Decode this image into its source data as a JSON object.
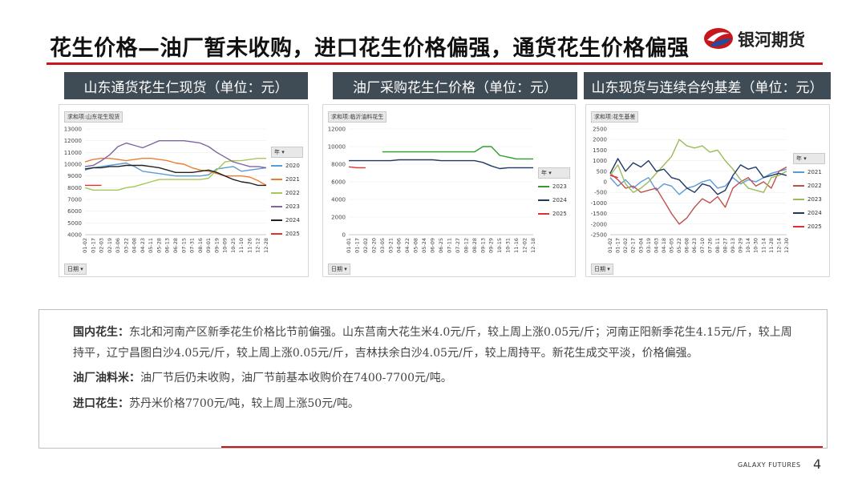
{
  "title": "花生价格—油厂暂未收购，进口花生价格偏强，通货花生价格偏强",
  "logo_text": "银河期货",
  "footer": "GALAXY FUTURES",
  "page_number": "4",
  "colors": {
    "accent": "#c8161d",
    "panel_header": "#3f4b55"
  },
  "panels": [
    {
      "header": "山东通货花生仁现货（单位：元）",
      "field": "求和项:山东花生现货",
      "legend_title": "年",
      "axis_button": "日期"
    },
    {
      "header": "油厂采购花生仁价格（单位：元）",
      "field": "求和项:临沂油料花生",
      "legend_title": "年",
      "axis_button": "日期"
    },
    {
      "header": "山东现货与连续合约基差（单位：元）",
      "field": "求和项:花生基差",
      "legend_title": "年",
      "axis_button": "日期"
    }
  ],
  "chart_data": [
    {
      "type": "line",
      "x": [
        "01-02",
        "01-17",
        "02-03",
        "02-19",
        "03-06",
        "03-22",
        "04-08",
        "04-23",
        "05-11",
        "05-28",
        "06-13",
        "06-28",
        "07-15",
        "07-31",
        "08-16",
        "09-01",
        "09-19",
        "10-09",
        "10-25",
        "11-10",
        "11-26",
        "12-12",
        "12-28"
      ],
      "ylim": [
        4000,
        13000
      ],
      "yticks": [
        4000,
        5000,
        6000,
        7000,
        8000,
        9000,
        10000,
        11000,
        12000,
        13000
      ],
      "series": [
        {
          "name": "2020",
          "color": "#5b9bd5",
          "values": [
            9500,
            9700,
            9800,
            9900,
            10000,
            10100,
            9800,
            9400,
            9300,
            9200,
            9100,
            9000,
            9000,
            9000,
            9000,
            9100,
            9600,
            9700,
            9800,
            9400,
            9500,
            9600,
            9700
          ]
        },
        {
          "name": "2021",
          "color": "#ed7d31",
          "values": [
            10200,
            10400,
            10500,
            10500,
            10400,
            10300,
            10400,
            10500,
            10500,
            10400,
            10300,
            10100,
            10000,
            9700,
            9500,
            9400,
            9200,
            9000,
            9000,
            9000,
            8900,
            8600,
            8200
          ]
        },
        {
          "name": "2022",
          "color": "#a5c85a",
          "values": [
            8000,
            7800,
            7800,
            7800,
            7800,
            8000,
            8100,
            8300,
            8500,
            8700,
            8700,
            8700,
            8700,
            8700,
            8700,
            8800,
            9500,
            10200,
            10300,
            10300,
            10400,
            10500,
            10500
          ]
        },
        {
          "name": "2023",
          "color": "#8064a2",
          "values": [
            9800,
            9900,
            10300,
            10800,
            11500,
            11800,
            11600,
            11400,
            11700,
            12000,
            12000,
            12000,
            12000,
            11900,
            11800,
            11500,
            11000,
            10600,
            10200,
            10000,
            9800,
            9800,
            9700
          ]
        },
        {
          "name": "2024",
          "color": "#222222",
          "values": [
            9600,
            9700,
            9700,
            9800,
            9800,
            9900,
            9900,
            9900,
            9800,
            9700,
            9500,
            9300,
            9300,
            9300,
            9400,
            9500,
            9300,
            9000,
            8700,
            8500,
            8400,
            8200,
            8200
          ]
        },
        {
          "name": "2025",
          "color": "#e03030",
          "values": [
            8200,
            8200,
            8200,
            null,
            null,
            null,
            null,
            null,
            null,
            null,
            null,
            null,
            null,
            null,
            null,
            null,
            null,
            null,
            null,
            null,
            null,
            null,
            null
          ]
        }
      ]
    },
    {
      "type": "line",
      "x": [
        "01-01",
        "01-17",
        "02-02",
        "02-20",
        "03-05",
        "03-21",
        "04-06",
        "04-22",
        "05-08",
        "05-24",
        "06-09",
        "06-25",
        "07-11",
        "07-27",
        "08-12",
        "08-28",
        "09-13",
        "09-29",
        "10-15",
        "10-31",
        "11-16",
        "12-02",
        "12-18"
      ],
      "ylim": [
        0,
        12000
      ],
      "yticks": [
        0,
        2000,
        4000,
        6000,
        8000,
        10000,
        12000
      ],
      "series": [
        {
          "name": "2023",
          "color": "#2ca02c",
          "values": [
            null,
            null,
            null,
            null,
            9400,
            9400,
            9400,
            9400,
            9400,
            9400,
            9400,
            9400,
            9400,
            9400,
            9400,
            9400,
            10000,
            10000,
            9000,
            8800,
            8600,
            8600,
            8600
          ]
        },
        {
          "name": "2024",
          "color": "#1f3864",
          "values": [
            8400,
            8400,
            8400,
            8400,
            8400,
            8400,
            8500,
            8500,
            8500,
            8500,
            8500,
            8400,
            8400,
            8400,
            8400,
            8400,
            8200,
            7800,
            7500,
            7600,
            7600,
            7600,
            7600
          ]
        },
        {
          "name": "2025",
          "color": "#e03030",
          "values": [
            7700,
            7600,
            7600,
            null,
            null,
            null,
            null,
            null,
            null,
            null,
            null,
            null,
            null,
            null,
            null,
            null,
            null,
            null,
            null,
            null,
            null,
            null,
            null
          ]
        }
      ]
    },
    {
      "type": "line",
      "x": [
        "01-02",
        "01-17",
        "02-02",
        "02-17",
        "03-04",
        "03-19",
        "04-03",
        "04-18",
        "05-05",
        "05-22",
        "06-08",
        "06-23",
        "07-10",
        "07-26",
        "08-11",
        "08-27",
        "09-13",
        "09-29",
        "10-14",
        "10-30",
        "11-14",
        "11-28",
        "12-14",
        "12-30"
      ],
      "ylim": [
        -2500,
        2500
      ],
      "yticks": [
        -2500,
        -2000,
        -1500,
        -1000,
        -500,
        0,
        500,
        1000,
        1500,
        2000,
        2500
      ],
      "series": [
        {
          "name": "2021",
          "color": "#5b9bd5",
          "values": [
            200,
            -200,
            100,
            -300,
            0,
            200,
            -400,
            -100,
            -200,
            -600,
            -300,
            -200,
            0,
            100,
            -300,
            -200,
            200,
            -100,
            100,
            0,
            200,
            400,
            500,
            600
          ]
        },
        {
          "name": "2022",
          "color": "#c0504d",
          "values": [
            400,
            100,
            -300,
            -200,
            -500,
            -400,
            -300,
            -900,
            -1500,
            -2000,
            -1700,
            -1200,
            -800,
            -1000,
            -700,
            -1200,
            -300,
            0,
            200,
            -200,
            0,
            -300,
            500,
            700
          ]
        },
        {
          "name": "2023",
          "color": "#9bbb59",
          "values": [
            300,
            800,
            -100,
            -500,
            -300,
            0,
            400,
            800,
            1200,
            2000,
            1700,
            1600,
            1700,
            1400,
            1500,
            1000,
            600,
            100,
            -300,
            -400,
            -500,
            200,
            300,
            500
          ]
        },
        {
          "name": "2024",
          "color": "#1f3864",
          "values": [
            400,
            1100,
            500,
            900,
            700,
            1000,
            500,
            600,
            200,
            100,
            -300,
            -500,
            -100,
            -200,
            -600,
            -400,
            300,
            800,
            600,
            700,
            200,
            300,
            400,
            300
          ]
        },
        {
          "name": "2025",
          "color": "#e03030",
          "values": [
            300,
            200,
            null,
            null,
            null,
            null,
            null,
            null,
            null,
            null,
            null,
            null,
            null,
            null,
            null,
            null,
            null,
            null,
            null,
            null,
            null,
            null,
            null,
            null
          ]
        }
      ]
    }
  ],
  "paragraphs": [
    {
      "label": "国内花生：",
      "text": "东北和河南产区新季花生价格比节前偏强。山东莒南大花生米4.0元/斤，较上周上涨0.05元/斤；河南正阳新季花生4.15元/斤，较上周持平，辽宁昌图白沙4.05元/斤，较上周上涨0.05元/斤，吉林扶余白沙4.05元/斤，较上周持平。新花生成交平淡，价格偏强。"
    },
    {
      "label": "油厂油料米：",
      "text": "油厂节后仍未收购，油厂节前基本收购价在7400-7700元/吨。"
    },
    {
      "label": "进口花生：",
      "text": "苏丹米价格7700元/吨，较上周上涨50元/吨。"
    }
  ]
}
